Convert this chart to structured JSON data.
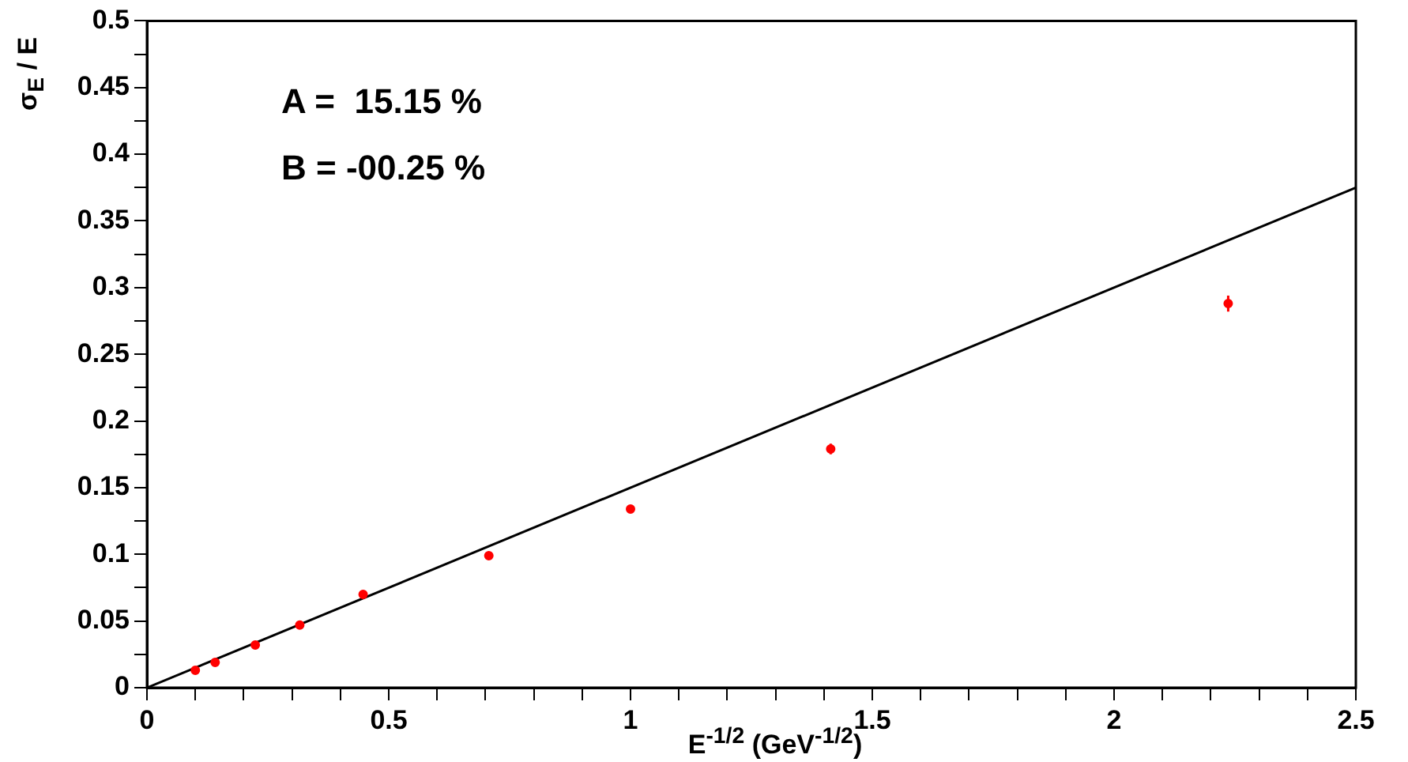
{
  "chart_data": {
    "type": "scatter",
    "xlabel": "E$^{-1/2}$ (GeV$^{-1/2}$)",
    "ylabel": "σ$_{E}$ / E",
    "annotations": [
      "A =  15.15 %",
      "B = -00.25 %"
    ],
    "series": [
      {
        "color": "#ff0000",
        "marker": "circle",
        "x": [
          0.1,
          0.141,
          0.224,
          0.316,
          0.447,
          0.707,
          1.0,
          1.414,
          2.236
        ],
        "values": [
          0.013,
          0.019,
          0.032,
          0.047,
          0.07,
          0.099,
          0.134,
          0.179,
          0.288
        ],
        "errors": [
          null,
          null,
          null,
          null,
          null,
          null,
          null,
          0.004,
          0.006
        ]
      },
      {
        "type": "line",
        "color": "#000000",
        "marker": "none",
        "line_style": "solid",
        "x": [
          0,
          2.5
        ],
        "values": [
          0,
          0.375
        ]
      }
    ],
    "xlim": [
      0,
      2.5
    ],
    "xticks": [
      0,
      {
        "value": 0.1,
        "label": null
      },
      {
        "value": 0.2,
        "label": null
      },
      {
        "value": 0.3,
        "label": null
      },
      {
        "value": 0.4,
        "label": null
      },
      0.5,
      {
        "value": 0.6,
        "label": null
      },
      {
        "value": 0.7,
        "label": null
      },
      {
        "value": 0.8,
        "label": null
      },
      {
        "value": 0.9,
        "label": null
      },
      1,
      {
        "value": 1.1,
        "label": null
      },
      {
        "value": 1.2,
        "label": null
      },
      {
        "value": 1.3,
        "label": null
      },
      {
        "value": 1.4,
        "label": null
      },
      1.5,
      {
        "value": 1.6,
        "label": null
      },
      {
        "value": 1.7,
        "label": null
      },
      {
        "value": 1.8,
        "label": null
      },
      {
        "value": 1.9,
        "label": null
      },
      2,
      {
        "value": 2.1,
        "label": null
      },
      {
        "value": 2.2,
        "label": null
      },
      {
        "value": 2.3,
        "label": null
      },
      {
        "value": 2.4,
        "label": null
      },
      2.5
    ],
    "ylim": [
      0,
      0.5
    ],
    "yticks": [
      0,
      {
        "value": 0.025,
        "label": null
      },
      0.05,
      {
        "value": 0.075,
        "label": null
      },
      0.1,
      {
        "value": 0.125,
        "label": null
      },
      0.15,
      {
        "value": 0.175,
        "label": null
      },
      0.2,
      {
        "value": 0.225,
        "label": null
      },
      0.25,
      {
        "value": 0.275,
        "label": null
      },
      0.3,
      {
        "value": 0.325,
        "label": null
      },
      0.35,
      {
        "value": 0.375,
        "label": null
      },
      0.4,
      {
        "value": 0.425,
        "label": null
      },
      0.45,
      {
        "value": 0.475,
        "label": null
      },
      0.5
    ],
    "grid": false,
    "legend": false
  }
}
